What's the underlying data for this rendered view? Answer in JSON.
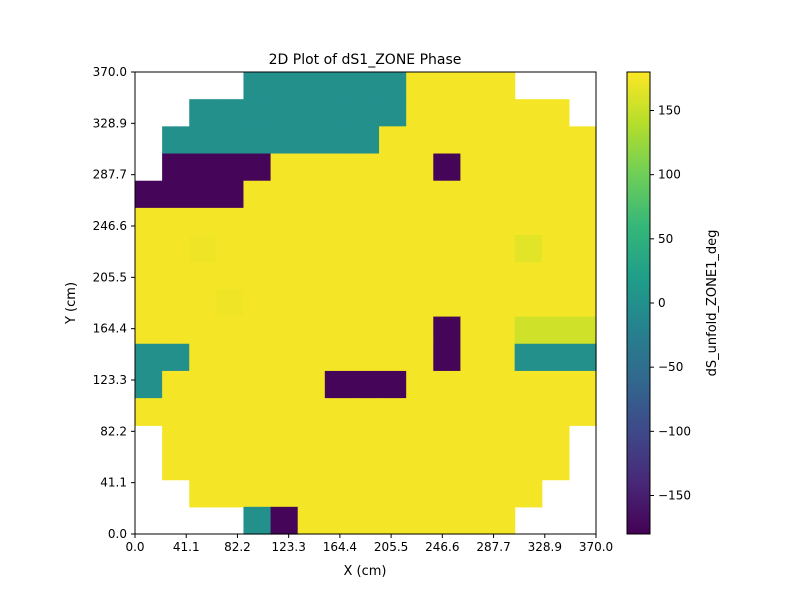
{
  "chart_data": {
    "type": "heatmap",
    "title": "2D Plot of dS1_ZONE Phase",
    "xlabel": "X (cm)",
    "ylabel": "Y (cm)",
    "xlim": [
      0.0,
      370.0
    ],
    "ylim": [
      0.0,
      370.0
    ],
    "xticks": [
      "0.0",
      "41.1",
      "82.2",
      "123.3",
      "164.4",
      "205.5",
      "246.6",
      "287.7",
      "328.9",
      "370.0"
    ],
    "yticks": [
      "0.0",
      "41.1",
      "82.2",
      "123.3",
      "164.4",
      "205.5",
      "246.6",
      "287.7",
      "328.9",
      "370.0"
    ],
    "grid": false,
    "cell_size": 21.7647,
    "n_cols": 17,
    "n_rows": 17,
    "row_order": "top-to-bottom (row 0 is y from 348.2 to 370.0)",
    "values": [
      [
        null,
        null,
        null,
        null,
        0,
        0,
        0,
        0,
        0,
        0,
        175,
        175,
        175,
        175,
        null,
        null,
        null
      ],
      [
        null,
        null,
        0,
        0,
        0,
        0,
        0,
        0,
        0,
        0,
        175,
        175,
        175,
        175,
        175,
        175,
        null
      ],
      [
        null,
        0,
        0,
        0,
        0,
        0,
        0,
        0,
        0,
        175,
        175,
        175,
        175,
        175,
        175,
        175,
        175
      ],
      [
        null,
        -175,
        -175,
        -175,
        -175,
        175,
        175,
        175,
        175,
        175,
        175,
        -175,
        175,
        175,
        175,
        175,
        175
      ],
      [
        -175,
        -175,
        -175,
        -175,
        175,
        175,
        175,
        175,
        175,
        175,
        175,
        175,
        175,
        175,
        175,
        175,
        175
      ],
      [
        175,
        175,
        175,
        175,
        175,
        175,
        175,
        175,
        175,
        175,
        175,
        175,
        175,
        175,
        175,
        175,
        175
      ],
      [
        175,
        175,
        172,
        175,
        175,
        175,
        175,
        175,
        175,
        175,
        175,
        175,
        175,
        175,
        165,
        175,
        175
      ],
      [
        175,
        175,
        175,
        175,
        175,
        175,
        175,
        175,
        175,
        175,
        175,
        175,
        175,
        175,
        175,
        175,
        175
      ],
      [
        175,
        175,
        175,
        172,
        175,
        175,
        175,
        175,
        175,
        175,
        175,
        175,
        175,
        175,
        175,
        175,
        175
      ],
      [
        175,
        175,
        175,
        175,
        175,
        175,
        175,
        175,
        175,
        175,
        175,
        -175,
        175,
        175,
        155,
        155,
        155
      ],
      [
        0,
        0,
        175,
        175,
        175,
        175,
        175,
        175,
        175,
        175,
        175,
        -175,
        175,
        175,
        0,
        0,
        0
      ],
      [
        0,
        175,
        175,
        175,
        175,
        175,
        175,
        -175,
        -175,
        -175,
        175,
        175,
        175,
        175,
        175,
        175,
        175
      ],
      [
        175,
        175,
        175,
        175,
        175,
        175,
        175,
        175,
        175,
        175,
        175,
        175,
        175,
        175,
        175,
        175,
        175
      ],
      [
        null,
        175,
        175,
        175,
        175,
        175,
        175,
        175,
        175,
        175,
        175,
        175,
        175,
        175,
        175,
        175,
        null
      ],
      [
        null,
        175,
        175,
        175,
        175,
        175,
        175,
        175,
        175,
        175,
        175,
        175,
        175,
        175,
        175,
        175,
        null
      ],
      [
        null,
        null,
        175,
        175,
        175,
        175,
        175,
        175,
        175,
        175,
        175,
        175,
        175,
        175,
        175,
        null,
        null
      ],
      [
        null,
        null,
        null,
        null,
        0,
        -175,
        175,
        175,
        175,
        175,
        175,
        175,
        175,
        175,
        null,
        null,
        null
      ]
    ],
    "colorbar": {
      "label": "dS_unfold_ZONE1_deg",
      "min": -180,
      "max": 180,
      "ticks": [
        "150",
        "100",
        "50",
        "0",
        "−50",
        "−100",
        "−150"
      ],
      "tick_values": [
        150,
        100,
        50,
        0,
        -50,
        -100,
        -150
      ],
      "colormap": "viridis",
      "stops": [
        "#440154",
        "#482878",
        "#3e4989",
        "#31688e",
        "#26828e",
        "#1f9e89",
        "#35b779",
        "#6ece58",
        "#b5de2b",
        "#fde725"
      ]
    }
  }
}
